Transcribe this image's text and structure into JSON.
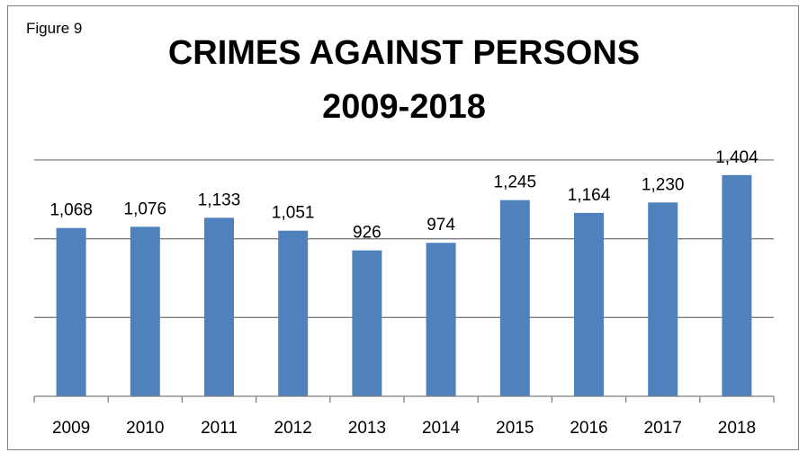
{
  "figure_label": "Figure 9",
  "title_line1": "CRIMES AGAINST PERSONS",
  "title_line2": "2009-2018",
  "colors": {
    "bar": "#4f81bd",
    "gridline": "#7f7f7f",
    "axis": "#7f7f7f",
    "text": "#000000"
  },
  "chart_data": {
    "type": "bar",
    "title": "CRIMES AGAINST PERSONS 2009-2018",
    "categories": [
      "2009",
      "2010",
      "2011",
      "2012",
      "2013",
      "2014",
      "2015",
      "2016",
      "2017",
      "2018"
    ],
    "values": [
      1068,
      1076,
      1133,
      1051,
      926,
      974,
      1245,
      1164,
      1230,
      1404
    ],
    "data_labels": [
      "1,068",
      "1,076",
      "1,133",
      "1,051",
      "926",
      "974",
      "1,245",
      "1,164",
      "1,230",
      "1,404"
    ],
    "ylim": [
      0,
      1500
    ],
    "y_gridlines": [
      500,
      1000,
      1500
    ],
    "y_tick_labels_shown": false,
    "grid": true,
    "legend": "none"
  }
}
